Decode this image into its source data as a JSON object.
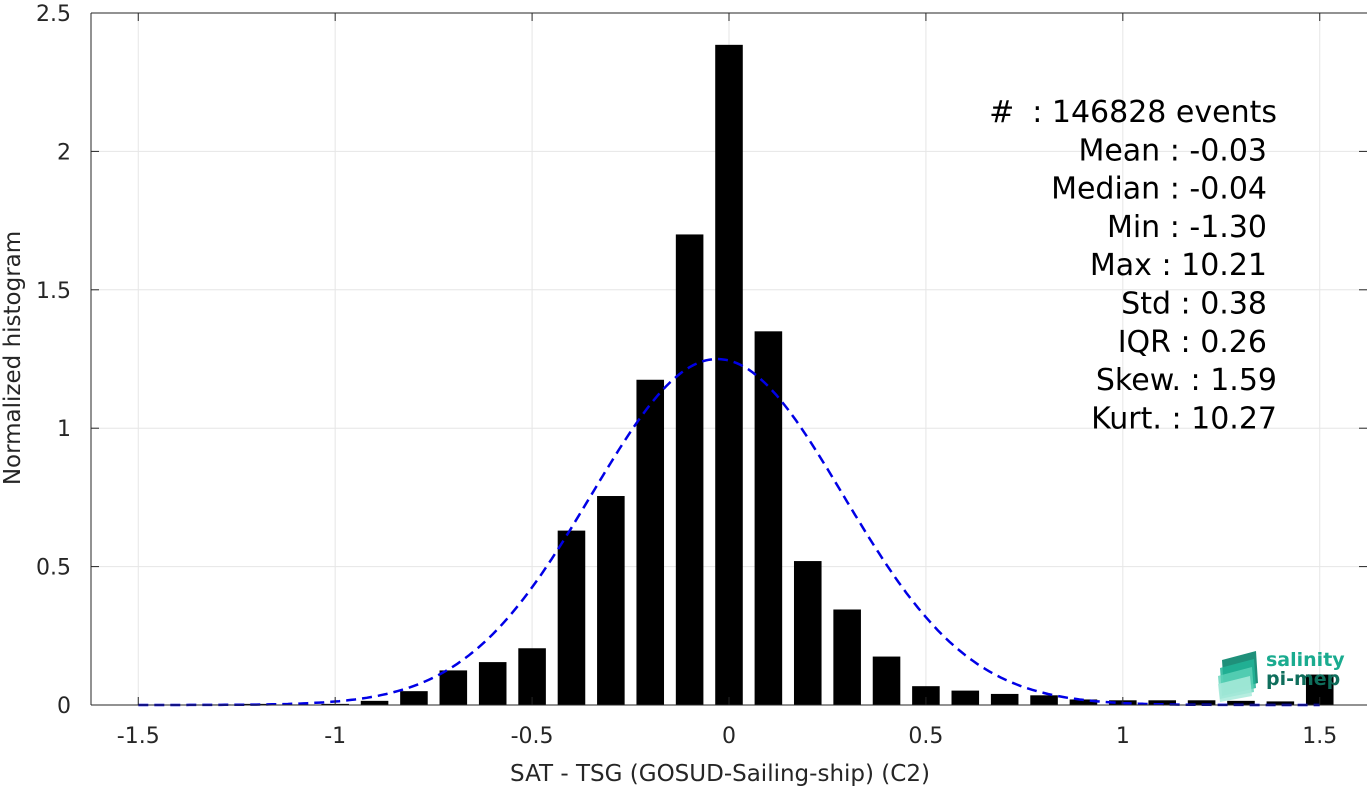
{
  "chart_data": {
    "type": "bar",
    "xlabel": "SAT - TSG (GOSUD-Sailing-ship) (C2)",
    "ylabel": "Normalized histogram",
    "xlim": [
      -1.62,
      1.62
    ],
    "ylim": [
      0,
      2.5
    ],
    "grid": true,
    "xticks": [
      -1.5,
      -1,
      -0.5,
      0,
      0.5,
      1,
      1.5
    ],
    "xtick_labels": [
      "-1.5",
      "-1",
      "-0.5",
      "0",
      "0.5",
      "1",
      "1.5"
    ],
    "yticks": [
      0,
      0.5,
      1,
      1.5,
      2,
      2.5
    ],
    "ytick_labels": [
      "0",
      "0.5",
      "1",
      "1.5",
      "2",
      "2.5"
    ],
    "bar_width": 0.07,
    "bar_color": "#000000",
    "bars": {
      "x": [
        -1.5,
        -1.4,
        -1.3,
        -1.2,
        -1.1,
        -1.0,
        -0.9,
        -0.8,
        -0.7,
        -0.6,
        -0.5,
        -0.4,
        -0.3,
        -0.2,
        -0.1,
        0.0,
        0.1,
        0.2,
        0.3,
        0.4,
        0.5,
        0.6,
        0.7,
        0.8,
        0.9,
        1.0,
        1.1,
        1.2,
        1.3,
        1.4,
        1.5
      ],
      "values": [
        0.0,
        0.0,
        0.002,
        0.004,
        0.002,
        0.004,
        0.015,
        0.05,
        0.125,
        0.155,
        0.205,
        0.63,
        0.755,
        1.175,
        1.7,
        2.385,
        1.35,
        0.52,
        0.345,
        0.175,
        0.068,
        0.052,
        0.04,
        0.035,
        0.02,
        0.017,
        0.017,
        0.017,
        0.015,
        0.013,
        0.11
      ]
    },
    "series": [
      {
        "type": "line",
        "style": "dashed",
        "color": "#0000e6",
        "distribution": "normal",
        "mean": -0.03,
        "std": 0.32,
        "peak": 1.25,
        "x_range": [
          -1.5,
          1.5
        ]
      }
    ],
    "annotations": [
      {
        "label": "#",
        "value": ": 146828 events"
      },
      {
        "label": "Mean",
        "value": ": -0.03"
      },
      {
        "label": "Median",
        "value": ": -0.04"
      },
      {
        "label": "Min",
        "value": ": -1.30"
      },
      {
        "label": "Max",
        "value": ": 10.21"
      },
      {
        "label": "Std",
        "value": ": 0.38"
      },
      {
        "label": "IQR",
        "value": ": 0.26"
      },
      {
        "label": "Skew.",
        "value": ": 1.59"
      },
      {
        "label": "Kurt.",
        "value": ": 10.27"
      }
    ]
  },
  "logo": {
    "line1": "salinity",
    "line2": "pi-mep",
    "color1": "#1aab8f",
    "color2": "#0f6e5c"
  }
}
